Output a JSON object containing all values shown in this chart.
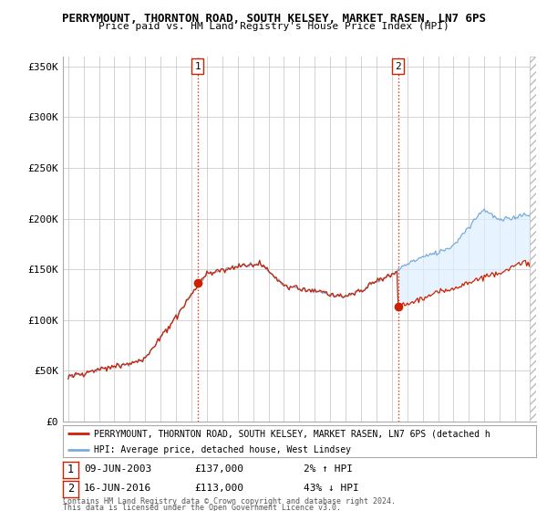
{
  "title": "PERRYMOUNT, THORNTON ROAD, SOUTH KELSEY, MARKET RASEN, LN7 6PS",
  "subtitle": "Price paid vs. HM Land Registry's House Price Index (HPI)",
  "hpi_color": "#7aabdb",
  "hpi_fill": "#ddeeff",
  "price_color": "#cc2200",
  "dashed_color": "#cc2200",
  "bg_color": "#ffffff",
  "grid_color": "#cccccc",
  "ylim": [
    0,
    360000
  ],
  "yticks": [
    0,
    50000,
    100000,
    150000,
    200000,
    250000,
    300000,
    350000
  ],
  "ytick_labels": [
    "£0",
    "£50K",
    "£100K",
    "£150K",
    "£200K",
    "£250K",
    "£300K",
    "£350K"
  ],
  "sale1_year": 2003.44,
  "sale1_price": 137000,
  "sale2_year": 2016.44,
  "sale2_price": 113000,
  "legend_line1": "PERRYMOUNT, THORNTON ROAD, SOUTH KELSEY, MARKET RASEN, LN7 6PS (detached h",
  "legend_line2": "HPI: Average price, detached house, West Lindsey",
  "footer1": "Contains HM Land Registry data © Crown copyright and database right 2024.",
  "footer2": "This data is licensed under the Open Government Licence v3.0."
}
